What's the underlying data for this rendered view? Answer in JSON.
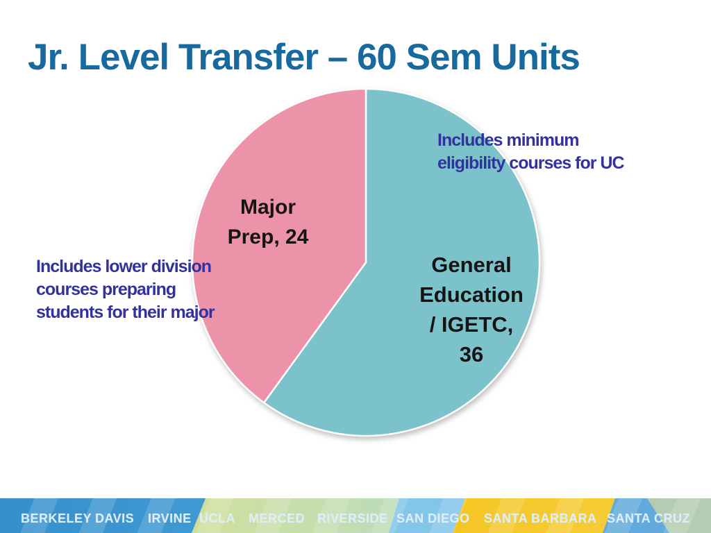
{
  "slide": {
    "title": "Jr. Level Transfer – 60 Sem Units",
    "title_color": "#17699e",
    "background_color": "#ffffff"
  },
  "chart_data": {
    "type": "pie",
    "title": "Jr. Level Transfer – 60 Sem Units",
    "total_units": 60,
    "start_angle_deg": 0,
    "direction": "clockwise",
    "legend": "none",
    "label_color": "#141414",
    "divider_color": "#ffffff",
    "slices": [
      {
        "name": "General Education / IGETC",
        "value": 36,
        "color": "#7cc2ca",
        "label_display": "General\nEducation\n/ IGETC,\n36"
      },
      {
        "name": "Major Prep",
        "value": 24,
        "color": "#ec92a9",
        "label_display": "Major\nPrep, 24"
      }
    ]
  },
  "annotations": {
    "right": {
      "text": "Includes minimum\neligibility  courses for UC",
      "color": "#32319d"
    },
    "left": {
      "text": "Includes lower division\ncourses preparing\nstudents for their major",
      "color": "#32319d"
    }
  },
  "footer": {
    "campuses": [
      "BERKELEY",
      "DAVIS",
      "IRVINE",
      "UCLA",
      "MERCED",
      "RIVERSIDE",
      "SAN DIEGO",
      "SANTA BARBARA",
      "SANTA CRUZ"
    ],
    "text_color": "#ddeefa",
    "segment_colors": {
      "blue_left": "#4aa5dd",
      "green_band": "#b4d178",
      "pale_green": "#cfdf9e",
      "teal_fade": "#b7dcc0",
      "light_blue": "#7cc3e8",
      "gold": "#f3c41d",
      "mid_blue": "#62aadb",
      "sage": "#a8c3a5"
    }
  }
}
